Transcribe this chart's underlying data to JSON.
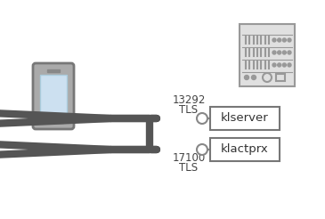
{
  "bg_color": "#ffffff",
  "arrow_color": "#555555",
  "box_edge_color": "#777777",
  "box_fill": "#ffffff",
  "server_fill": "#e0e0e0",
  "server_edge": "#999999",
  "phone_body_color": "#aaaaaa",
  "phone_edge_color": "#777777",
  "phone_screen_color": "#cce0f0",
  "label1": "klserver",
  "label2": "klactprx",
  "port1": "13292",
  "port2": "17100",
  "proto": "TLS",
  "figsize": [
    3.65,
    2.46
  ],
  "dpi": 100,
  "arrow_lw": 6
}
